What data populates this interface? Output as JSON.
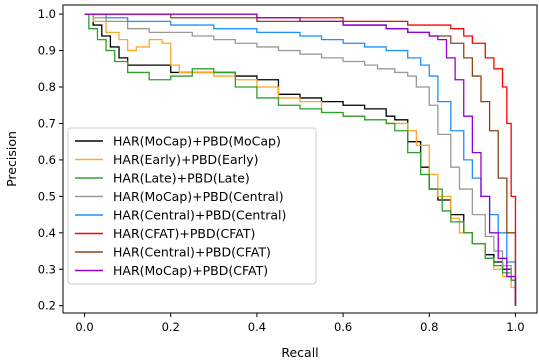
{
  "chart_data": {
    "type": "line",
    "title": "",
    "xlabel": "Recall",
    "ylabel": "Precision",
    "xlim": [
      -0.05,
      1.05
    ],
    "ylim": [
      0.18,
      1.025
    ],
    "xticks": [
      0.0,
      0.2,
      0.4,
      0.6,
      0.8,
      1.0
    ],
    "xtick_labels": [
      "0.0",
      "0.2",
      "0.4",
      "0.6",
      "0.8",
      "1.0"
    ],
    "yticks": [
      0.2,
      0.3,
      0.4,
      0.5,
      0.6,
      0.7,
      0.8,
      0.9,
      1.0
    ],
    "ytick_labels": [
      "0.2",
      "0.3",
      "0.4",
      "0.5",
      "0.6",
      "0.7",
      "0.8",
      "0.9",
      "1.0"
    ],
    "grid": false,
    "legend_position": "lower-left",
    "series": [
      {
        "name": "HAR(MoCap)+PBD(MoCap)",
        "color": "#000000",
        "x": [
          0.0,
          0.02,
          0.04,
          0.06,
          0.08,
          0.1,
          0.15,
          0.2,
          0.25,
          0.3,
          0.35,
          0.4,
          0.45,
          0.5,
          0.55,
          0.6,
          0.65,
          0.7,
          0.72,
          0.75,
          0.78,
          0.8,
          0.82,
          0.85,
          0.88,
          0.9,
          0.93,
          0.95,
          0.97,
          0.99,
          1.0
        ],
        "y": [
          1.0,
          0.97,
          0.94,
          0.91,
          0.88,
          0.86,
          0.86,
          0.84,
          0.84,
          0.84,
          0.83,
          0.82,
          0.78,
          0.77,
          0.76,
          0.75,
          0.74,
          0.72,
          0.71,
          0.65,
          0.58,
          0.52,
          0.49,
          0.45,
          0.4,
          0.37,
          0.34,
          0.32,
          0.3,
          0.27,
          0.2
        ]
      },
      {
        "name": "HAR(Early)+PBD(Early)",
        "color": "#ffa726",
        "x": [
          0.0,
          0.02,
          0.05,
          0.08,
          0.1,
          0.12,
          0.15,
          0.18,
          0.2,
          0.22,
          0.25,
          0.3,
          0.35,
          0.4,
          0.45,
          0.5,
          0.55,
          0.6,
          0.65,
          0.7,
          0.75,
          0.77,
          0.8,
          0.82,
          0.85,
          0.87,
          0.9,
          0.93,
          0.95,
          0.97,
          0.99,
          1.0
        ],
        "y": [
          1.0,
          0.98,
          0.95,
          0.93,
          0.9,
          0.91,
          0.93,
          0.92,
          0.86,
          0.84,
          0.84,
          0.83,
          0.82,
          0.8,
          0.77,
          0.76,
          0.73,
          0.72,
          0.71,
          0.7,
          0.68,
          0.64,
          0.56,
          0.5,
          0.44,
          0.4,
          0.37,
          0.33,
          0.3,
          0.28,
          0.25,
          0.2
        ]
      },
      {
        "name": "HAR(Late)+PBD(Late)",
        "color": "#2ca02c",
        "x": [
          0.0,
          0.01,
          0.03,
          0.05,
          0.07,
          0.1,
          0.15,
          0.2,
          0.25,
          0.3,
          0.35,
          0.4,
          0.45,
          0.5,
          0.55,
          0.6,
          0.65,
          0.7,
          0.72,
          0.75,
          0.78,
          0.8,
          0.83,
          0.85,
          0.88,
          0.9,
          0.93,
          0.95,
          0.97,
          0.99,
          1.0
        ],
        "y": [
          1.0,
          0.96,
          0.93,
          0.9,
          0.87,
          0.84,
          0.82,
          0.83,
          0.85,
          0.84,
          0.8,
          0.77,
          0.75,
          0.74,
          0.73,
          0.72,
          0.71,
          0.7,
          0.68,
          0.62,
          0.56,
          0.52,
          0.46,
          0.43,
          0.4,
          0.37,
          0.33,
          0.31,
          0.29,
          0.27,
          0.2
        ]
      },
      {
        "name": "HAR(MoCap)+PBD(Central)",
        "color": "#999999",
        "x": [
          0.0,
          0.02,
          0.05,
          0.1,
          0.15,
          0.2,
          0.25,
          0.3,
          0.35,
          0.4,
          0.45,
          0.5,
          0.55,
          0.6,
          0.65,
          0.68,
          0.72,
          0.75,
          0.77,
          0.8,
          0.82,
          0.85,
          0.87,
          0.9,
          0.93,
          0.95,
          0.97,
          0.99,
          1.0
        ],
        "y": [
          1.0,
          0.99,
          0.98,
          0.96,
          0.95,
          0.95,
          0.94,
          0.93,
          0.92,
          0.91,
          0.9,
          0.89,
          0.88,
          0.87,
          0.86,
          0.85,
          0.84,
          0.83,
          0.8,
          0.75,
          0.67,
          0.58,
          0.52,
          0.45,
          0.39,
          0.35,
          0.31,
          0.28,
          0.2
        ]
      },
      {
        "name": "HAR(Central)+PBD(Central)",
        "color": "#1e90ff",
        "x": [
          0.0,
          0.05,
          0.1,
          0.2,
          0.3,
          0.4,
          0.5,
          0.55,
          0.6,
          0.65,
          0.7,
          0.75,
          0.78,
          0.8,
          0.82,
          0.85,
          0.88,
          0.9,
          0.92,
          0.94,
          0.96,
          0.98,
          1.0
        ],
        "y": [
          1.0,
          0.99,
          0.98,
          0.97,
          0.96,
          0.95,
          0.94,
          0.93,
          0.92,
          0.91,
          0.9,
          0.88,
          0.86,
          0.83,
          0.76,
          0.68,
          0.6,
          0.55,
          0.5,
          0.45,
          0.4,
          0.32,
          0.2
        ]
      },
      {
        "name": "HAR(CFAT)+PBD(CFAT)",
        "color": "#ff0000",
        "x": [
          0.0,
          0.1,
          0.2,
          0.3,
          0.4,
          0.5,
          0.6,
          0.7,
          0.75,
          0.8,
          0.85,
          0.88,
          0.9,
          0.93,
          0.95,
          0.97,
          0.98,
          0.99,
          1.0
        ],
        "y": [
          1.0,
          1.0,
          1.0,
          1.0,
          0.99,
          0.99,
          0.98,
          0.98,
          0.97,
          0.97,
          0.96,
          0.94,
          0.92,
          0.88,
          0.85,
          0.8,
          0.7,
          0.5,
          0.2
        ]
      },
      {
        "name": "HAR(Central)+PBD(CFAT)",
        "color": "#8b4513",
        "x": [
          0.0,
          0.1,
          0.2,
          0.3,
          0.4,
          0.5,
          0.6,
          0.7,
          0.75,
          0.8,
          0.85,
          0.88,
          0.9,
          0.92,
          0.94,
          0.96,
          0.98,
          1.0
        ],
        "y": [
          1.0,
          1.0,
          0.99,
          0.99,
          0.98,
          0.98,
          0.97,
          0.96,
          0.95,
          0.94,
          0.92,
          0.88,
          0.83,
          0.76,
          0.68,
          0.55,
          0.4,
          0.25
        ]
      },
      {
        "name": "HAR(MoCap)+PBD(CFAT)",
        "color": "#9400d3",
        "x": [
          0.0,
          0.1,
          0.2,
          0.3,
          0.4,
          0.5,
          0.6,
          0.7,
          0.75,
          0.8,
          0.82,
          0.84,
          0.86,
          0.88,
          0.9,
          0.92,
          0.94,
          0.96,
          0.98,
          1.0
        ],
        "y": [
          1.0,
          1.0,
          1.0,
          1.0,
          0.99,
          0.98,
          0.97,
          0.96,
          0.95,
          0.94,
          0.93,
          0.88,
          0.82,
          0.72,
          0.62,
          0.5,
          0.4,
          0.33,
          0.28,
          0.2
        ]
      }
    ]
  }
}
